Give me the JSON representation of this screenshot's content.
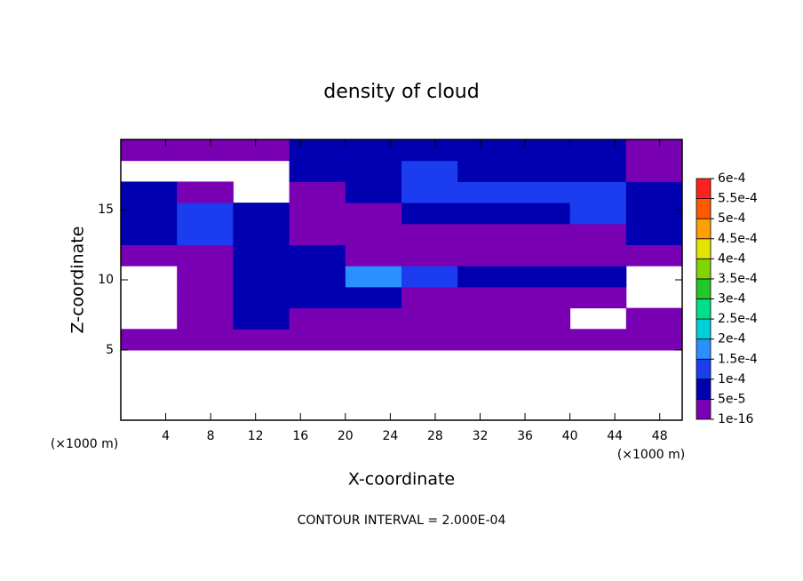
{
  "chart_data": {
    "type": "contour",
    "title": "density of cloud",
    "x_label": "X-coordinate",
    "y_label": "Z-coordinate",
    "x_unit_label": "(×1000 m)",
    "y_unit_label": "(×1000 m)",
    "footnote": "CONTOUR INTERVAL = 2.000E-04",
    "xlim": [
      0,
      50
    ],
    "ylim": [
      0,
      20
    ],
    "xticks": [
      4,
      8,
      12,
      16,
      20,
      24,
      28,
      32,
      36,
      40,
      44,
      48
    ],
    "yticks": [
      5,
      10,
      15
    ],
    "x_edges": [
      0,
      5,
      10,
      15,
      20,
      25,
      30,
      35,
      40,
      45,
      50
    ],
    "y_edges": [
      5,
      6.5,
      8,
      9.5,
      11,
      12.5,
      14,
      15.5,
      17,
      18.5,
      20
    ],
    "z": [
      [
        2e-05,
        2e-05,
        2e-05,
        2e-05,
        2e-05,
        2e-05,
        2e-05,
        2e-05,
        2e-05,
        2e-05
      ],
      [
        null,
        2e-05,
        6e-05,
        2e-05,
        2e-05,
        2e-05,
        2e-05,
        2e-05,
        null,
        2e-05
      ],
      [
        null,
        2e-05,
        6e-05,
        6e-05,
        6e-05,
        2e-05,
        2e-05,
        2e-05,
        2e-05,
        null
      ],
      [
        null,
        2e-05,
        6e-05,
        7e-05,
        0.00016,
        0.00011,
        8e-05,
        6e-05,
        7e-05,
        null
      ],
      [
        2e-05,
        2e-05,
        6e-05,
        8e-05,
        2e-05,
        2e-05,
        2e-05,
        2e-05,
        2e-05,
        2e-05
      ],
      [
        7e-05,
        0.00011,
        8e-05,
        2e-05,
        2e-05,
        2e-05,
        2e-05,
        2e-05,
        2e-05,
        6e-05
      ],
      [
        8e-05,
        0.00012,
        6e-05,
        2e-05,
        2e-05,
        6e-05,
        7e-05,
        8e-05,
        0.00011,
        8e-05
      ],
      [
        6e-05,
        2e-05,
        null,
        2e-05,
        7e-05,
        0.0001,
        0.00011,
        0.00012,
        0.00011,
        6e-05
      ],
      [
        null,
        null,
        null,
        6e-05,
        8e-05,
        0.00011,
        8e-05,
        8e-05,
        7e-05,
        2e-05
      ],
      [
        2e-05,
        2e-05,
        2e-05,
        6e-05,
        7e-05,
        8e-05,
        8e-05,
        8e-05,
        7e-05,
        2e-05
      ]
    ],
    "levels": [
      {
        "value": 1e-16,
        "label": "1e-16"
      },
      {
        "value": 5e-05,
        "label": "5e-5"
      },
      {
        "value": 0.0001,
        "label": "1e-4"
      },
      {
        "value": 0.00015,
        "label": "1.5e-4"
      },
      {
        "value": 0.0002,
        "label": "2e-4"
      },
      {
        "value": 0.00025,
        "label": "2.5e-4"
      },
      {
        "value": 0.0003,
        "label": "3e-4"
      },
      {
        "value": 0.00035,
        "label": "3.5e-4"
      },
      {
        "value": 0.0004,
        "label": "4e-4"
      },
      {
        "value": 0.00045,
        "label": "4.5e-4"
      },
      {
        "value": 0.0005,
        "label": "5e-4"
      },
      {
        "value": 0.00055,
        "label": "5.5e-4"
      },
      {
        "value": 0.0006,
        "label": "6e-4"
      }
    ],
    "colors": [
      "#7a00b4",
      "#0000b0",
      "#1c3cf0",
      "#2a90ff",
      "#00d0d8",
      "#00e08c",
      "#20c828",
      "#80d400",
      "#e4e400",
      "#ffa000",
      "#ff5a00",
      "#ff2020"
    ]
  }
}
